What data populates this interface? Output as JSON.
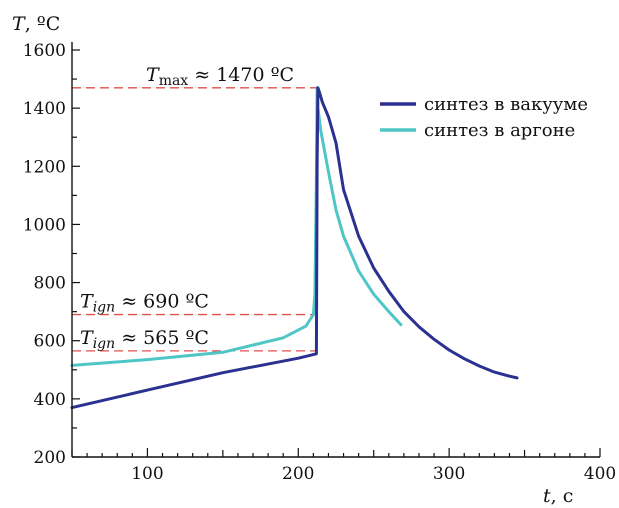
{
  "chart_data": {
    "type": "line",
    "xlabel": "t",
    "xunit": ", c",
    "ylabel": "T",
    "yunit": ", ºC",
    "xlim": [
      50,
      400
    ],
    "ylim": [
      200,
      1600
    ],
    "xticks": [
      100,
      200,
      300,
      400
    ],
    "yticks": [
      200,
      400,
      600,
      800,
      1000,
      1200,
      1400,
      1600
    ],
    "legend_position": "top-right",
    "grid": false,
    "series": [
      {
        "name": "синтез в вакууме",
        "color": "#2b3190",
        "x": [
          50,
          100,
          150,
          200,
          212,
          212.5,
          213,
          214,
          216,
          220,
          225,
          230,
          240,
          250,
          260,
          270,
          280,
          290,
          300,
          310,
          320,
          330,
          340,
          345
        ],
        "y": [
          370,
          430,
          490,
          540,
          555,
          1200,
          1470,
          1455,
          1420,
          1370,
          1280,
          1120,
          960,
          850,
          770,
          700,
          648,
          605,
          568,
          538,
          513,
          492,
          478,
          472
        ]
      },
      {
        "name": "синтез в аргоне",
        "color": "#4fc6c6",
        "x": [
          50,
          100,
          150,
          190,
          205,
          210,
          211,
          212,
          212.5,
          213,
          215,
          220,
          225,
          230,
          240,
          250,
          260,
          268
        ],
        "y": [
          515,
          535,
          560,
          610,
          650,
          690,
          760,
          1150,
          1470,
          1400,
          1320,
          1180,
          1050,
          960,
          840,
          760,
          700,
          655
        ]
      }
    ],
    "annotations": [
      {
        "main": "T",
        "sub": "max",
        "rest": " ≈ 1470 ºC",
        "y": 1470
      },
      {
        "main": "T",
        "sub": "ign",
        "rest": " ≈ 690 ºC",
        "y": 690
      },
      {
        "main": "T",
        "sub": "ign",
        "rest": " ≈ 565 ºC",
        "y": 565
      }
    ],
    "reference_line_color": "#e0504d"
  }
}
